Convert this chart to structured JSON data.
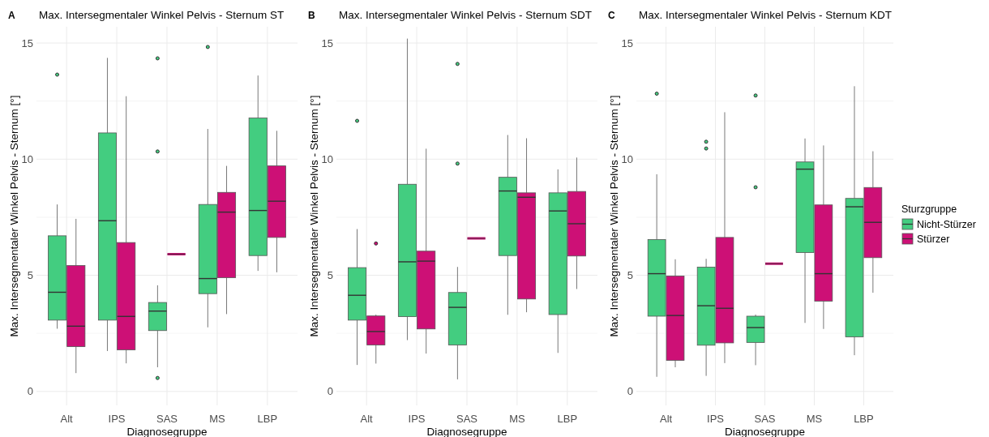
{
  "chart_data": [
    {
      "type": "box",
      "title": "Max. Intersegmentaler Winkel Pelvis - Sternum ST",
      "xlabel": "Diagnosegruppe",
      "ylabel": "Max. Intersegmentaler Winkel Pelvis - Sternum [°]",
      "annotations": [
        "A"
      ],
      "categories": [
        "Alt",
        "IPS",
        "SAS",
        "MS",
        "LBP"
      ],
      "ylim": [
        -0.6,
        15.7
      ],
      "yticks": [
        0,
        {
          "value": 2.5,
          "label": null
        },
        5,
        {
          "value": 7.5,
          "label": null
        },
        10,
        {
          "value": 12.5,
          "label": null
        },
        15
      ],
      "grid": true,
      "legend": false,
      "series": [
        {
          "color": "#43cd80",
          "boxes": [
            {
              "low": 2.7,
              "q1": 3.07,
              "median": 4.27,
              "q3": 6.7,
              "high": 8.05,
              "outliers": [
                13.64
              ]
            },
            {
              "low": 1.74,
              "q1": 3.07,
              "median": 7.35,
              "q3": 11.13,
              "high": 14.36
            },
            {
              "low": 1.04,
              "q1": 2.62,
              "median": 3.46,
              "q3": 3.83,
              "high": 4.57,
              "outliers": [
                14.34,
                10.33,
                0.58
              ]
            },
            {
              "low": 2.76,
              "q1": 4.21,
              "median": 4.86,
              "q3": 8.05,
              "high": 11.3,
              "outliers": [
                14.83
              ]
            },
            {
              "low": 5.19,
              "q1": 5.85,
              "median": 7.79,
              "q3": 11.77,
              "high": 13.6
            }
          ]
        },
        {
          "color": "#cd1076",
          "boxes": [
            {
              "low": 0.79,
              "q1": 1.93,
              "median": 2.81,
              "q3": 5.42,
              "high": 7.43
            },
            {
              "low": 1.21,
              "q1": 1.79,
              "median": 3.23,
              "q3": 6.41,
              "high": 12.71
            },
            {
              "low": 5.91,
              "q1": 5.91,
              "median": 5.91,
              "q3": 5.91,
              "high": 5.91
            },
            {
              "low": 3.33,
              "q1": 4.9,
              "median": 7.72,
              "q3": 8.57,
              "high": 9.71
            },
            {
              "low": 5.13,
              "q1": 6.63,
              "median": 8.19,
              "q3": 9.71,
              "high": 11.22
            }
          ]
        }
      ]
    },
    {
      "type": "box",
      "title": "Max. Intersegmentaler Winkel Pelvis - Sternum SDT",
      "xlabel": "Diagnosegruppe",
      "ylabel": "Max. Intersegmentaler Winkel Pelvis - Sternum [°]",
      "annotations": [
        "B"
      ],
      "categories": [
        "Alt",
        "IPS",
        "SAS",
        "MS",
        "LBP"
      ],
      "ylim": [
        -0.6,
        15.7
      ],
      "yticks": [
        0,
        {
          "value": 2.5,
          "label": null
        },
        5,
        {
          "value": 7.5,
          "label": null
        },
        10,
        {
          "value": 12.5,
          "label": null
        },
        15
      ],
      "grid": true,
      "legend": false,
      "series": [
        {
          "color": "#43cd80",
          "boxes": [
            {
              "low": 1.14,
              "q1": 3.07,
              "median": 4.14,
              "q3": 5.33,
              "high": 6.99,
              "outliers": [
                11.65
              ]
            },
            {
              "low": 2.21,
              "q1": 3.22,
              "median": 5.58,
              "q3": 8.92,
              "high": 15.19
            },
            {
              "low": 0.52,
              "q1": 2.0,
              "median": 3.62,
              "q3": 4.26,
              "high": 5.36,
              "outliers": [
                14.1,
                9.81
              ]
            },
            {
              "low": 3.3,
              "q1": 5.85,
              "median": 8.63,
              "q3": 9.22,
              "high": 11.04
            },
            {
              "low": 1.66,
              "q1": 3.31,
              "median": 7.77,
              "q3": 8.55,
              "high": 9.56
            }
          ]
        },
        {
          "color": "#cd1076",
          "boxes": [
            {
              "low": 1.2,
              "q1": 2.0,
              "median": 2.58,
              "q3": 3.25,
              "high": 3.31,
              "outliers": [
                6.37
              ]
            },
            {
              "low": 1.63,
              "q1": 2.69,
              "median": 5.61,
              "q3": 6.04,
              "high": 10.45
            },
            {
              "low": 6.59,
              "q1": 6.59,
              "median": 6.59,
              "q3": 6.59,
              "high": 6.59
            },
            {
              "low": 3.41,
              "q1": 3.98,
              "median": 8.36,
              "q3": 8.55,
              "high": 10.9
            },
            {
              "low": 4.41,
              "q1": 5.83,
              "median": 7.22,
              "q3": 8.61,
              "high": 10.07
            }
          ]
        }
      ]
    },
    {
      "type": "box",
      "title": "Max. Intersegmentaler Winkel Pelvis - Sternum KDT",
      "xlabel": "Diagnosegruppe",
      "ylabel": "Max. Intersegmentaler Winkel Pelvis - Sternum [°]",
      "annotations": [
        "C"
      ],
      "categories": [
        "Alt",
        "IPS",
        "SAS",
        "MS",
        "LBP"
      ],
      "ylim": [
        -0.6,
        15.7
      ],
      "yticks": [
        0,
        {
          "value": 2.5,
          "label": null
        },
        5,
        {
          "value": 7.5,
          "label": null
        },
        10,
        {
          "value": 12.5,
          "label": null
        },
        15
      ],
      "grid": true,
      "legend": "right",
      "legend_title": "Sturzgruppe",
      "series": [
        {
          "name": "Nicht-Stürzer",
          "color": "#43cd80",
          "boxes": [
            {
              "low": 0.63,
              "q1": 3.24,
              "median": 5.07,
              "q3": 6.54,
              "high": 9.35,
              "outliers": [
                12.82
              ]
            },
            {
              "low": 0.67,
              "q1": 1.99,
              "median": 3.69,
              "q3": 5.35,
              "high": 5.71,
              "outliers": [
                10.75,
                10.46
              ]
            },
            {
              "low": 1.13,
              "q1": 2.11,
              "median": 2.75,
              "q3": 3.24,
              "high": 3.31,
              "outliers": [
                12.74,
                8.79
              ]
            },
            {
              "low": 2.95,
              "q1": 5.98,
              "median": 9.57,
              "q3": 9.88,
              "high": 10.89
            },
            {
              "low": 1.56,
              "q1": 2.35,
              "median": 7.95,
              "q3": 8.31,
              "high": 13.14
            }
          ]
        },
        {
          "name": "Stürzer",
          "color": "#cd1076",
          "boxes": [
            {
              "low": 1.04,
              "q1": 1.34,
              "median": 3.27,
              "q3": 4.97,
              "high": 5.69
            },
            {
              "low": 1.22,
              "q1": 2.09,
              "median": 3.58,
              "q3": 6.63,
              "high": 12.02
            },
            {
              "low": 5.5,
              "q1": 5.5,
              "median": 5.5,
              "q3": 5.5,
              "high": 5.5
            },
            {
              "low": 2.69,
              "q1": 3.89,
              "median": 5.07,
              "q3": 8.03,
              "high": 10.59
            },
            {
              "low": 4.25,
              "q1": 5.76,
              "median": 7.28,
              "q3": 8.78,
              "high": 10.34
            }
          ]
        }
      ]
    }
  ]
}
